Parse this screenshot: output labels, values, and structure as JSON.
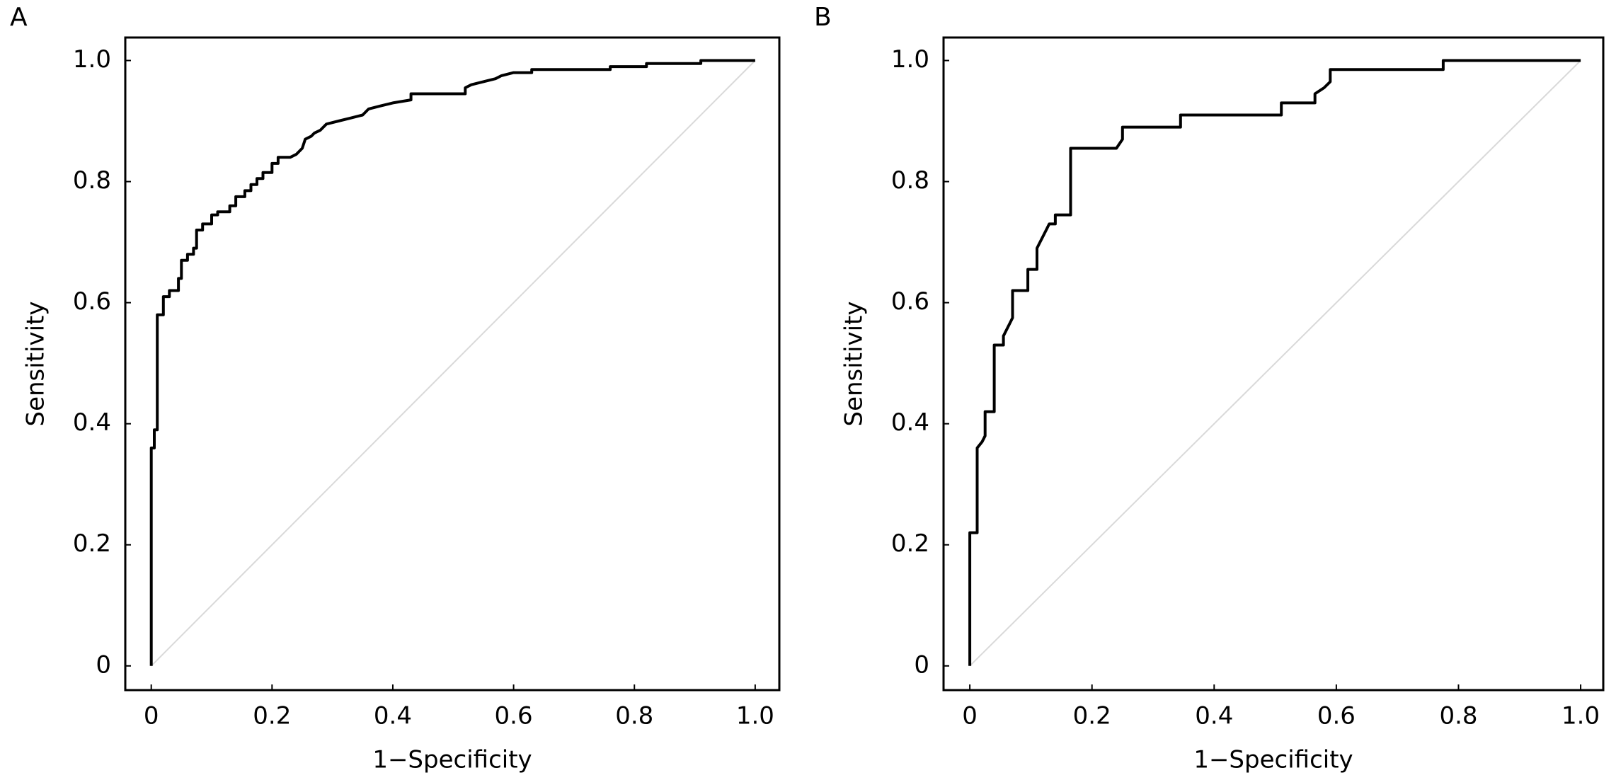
{
  "chart_data": [
    {
      "type": "line",
      "label": "A",
      "xlabel": "1−Specificity",
      "ylabel": "Sensitivity",
      "xlim": [
        -0.043,
        1.04
      ],
      "ylim": [
        -0.04,
        1.038
      ],
      "xticks": [
        0,
        0.2,
        0.4,
        0.6,
        0.8,
        {
          "value": 1,
          "label": "1.0"
        }
      ],
      "yticks": [
        0,
        0.2,
        0.4,
        0.6,
        0.8,
        {
          "value": 1,
          "label": "1.0"
        }
      ],
      "reference_line": {
        "x": [
          0,
          1
        ],
        "y": [
          0,
          1
        ],
        "color": "#d9d9d9"
      },
      "series": [
        {
          "color": "#000000",
          "x": [
            0,
            0,
            0.005,
            0.005,
            0.01,
            0.01,
            0.02,
            0.02,
            0.03,
            0.03,
            0.045,
            0.045,
            0.05,
            0.05,
            0.06,
            0.06,
            0.07,
            0.07,
            0.075,
            0.075,
            0.085,
            0.085,
            0.1,
            0.1,
            0.11,
            0.11,
            0.13,
            0.13,
            0.14,
            0.14,
            0.155,
            0.155,
            0.165,
            0.165,
            0.175,
            0.175,
            0.185,
            0.185,
            0.2,
            0.2,
            0.21,
            0.21,
            0.23,
            0.24,
            0.25,
            0.255,
            0.265,
            0.27,
            0.28,
            0.29,
            0.31,
            0.33,
            0.35,
            0.36,
            0.38,
            0.4,
            0.43,
            0.43,
            0.52,
            0.52,
            0.53,
            0.55,
            0.57,
            0.58,
            0.6,
            0.63,
            0.63,
            0.76,
            0.76,
            0.82,
            0.82,
            0.91,
            0.91,
            1
          ],
          "values": [
            0,
            0.36,
            0.36,
            0.39,
            0.39,
            0.58,
            0.58,
            0.61,
            0.61,
            0.62,
            0.62,
            0.64,
            0.64,
            0.67,
            0.67,
            0.68,
            0.68,
            0.69,
            0.69,
            0.72,
            0.72,
            0.73,
            0.73,
            0.745,
            0.745,
            0.75,
            0.75,
            0.76,
            0.76,
            0.775,
            0.775,
            0.785,
            0.785,
            0.795,
            0.795,
            0.805,
            0.805,
            0.815,
            0.815,
            0.83,
            0.83,
            0.84,
            0.84,
            0.845,
            0.855,
            0.87,
            0.875,
            0.88,
            0.885,
            0.895,
            0.9,
            0.905,
            0.91,
            0.92,
            0.925,
            0.93,
            0.935,
            0.945,
            0.945,
            0.955,
            0.96,
            0.965,
            0.97,
            0.975,
            0.98,
            0.98,
            0.985,
            0.985,
            0.99,
            0.99,
            0.995,
            0.995,
            1,
            1
          ]
        }
      ]
    },
    {
      "type": "line",
      "label": "B",
      "xlabel": "1−Specificity",
      "ylabel": "Sensitivity",
      "xlim": [
        -0.043,
        1.037
      ],
      "ylim": [
        -0.04,
        1.038
      ],
      "xticks": [
        0,
        0.2,
        0.4,
        0.6,
        0.8,
        {
          "value": 1,
          "label": "1.0"
        }
      ],
      "yticks": [
        0,
        0.2,
        0.4,
        0.6,
        0.8,
        {
          "value": 1,
          "label": "1.0"
        }
      ],
      "reference_line": {
        "x": [
          0,
          1
        ],
        "y": [
          0,
          1
        ],
        "color": "#d9d9d9"
      },
      "series": [
        {
          "color": "#000000",
          "x": [
            0,
            0,
            0.012,
            0.012,
            0.02,
            0.025,
            0.025,
            0.04,
            0.04,
            0.055,
            0.055,
            0.06,
            0.065,
            0.07,
            0.07,
            0.095,
            0.095,
            0.11,
            0.11,
            0.115,
            0.12,
            0.125,
            0.13,
            0.14,
            0.14,
            0.165,
            0.165,
            0.24,
            0.25,
            0.25,
            0.345,
            0.345,
            0.51,
            0.51,
            0.565,
            0.565,
            0.58,
            0.59,
            0.59,
            0.775,
            0.775,
            1
          ],
          "values": [
            0,
            0.22,
            0.22,
            0.36,
            0.37,
            0.38,
            0.42,
            0.42,
            0.53,
            0.53,
            0.545,
            0.555,
            0.565,
            0.575,
            0.62,
            0.62,
            0.655,
            0.655,
            0.69,
            0.7,
            0.71,
            0.72,
            0.73,
            0.73,
            0.745,
            0.745,
            0.855,
            0.855,
            0.87,
            0.89,
            0.89,
            0.91,
            0.91,
            0.93,
            0.93,
            0.945,
            0.955,
            0.965,
            0.985,
            0.985,
            1,
            1
          ]
        }
      ]
    }
  ]
}
